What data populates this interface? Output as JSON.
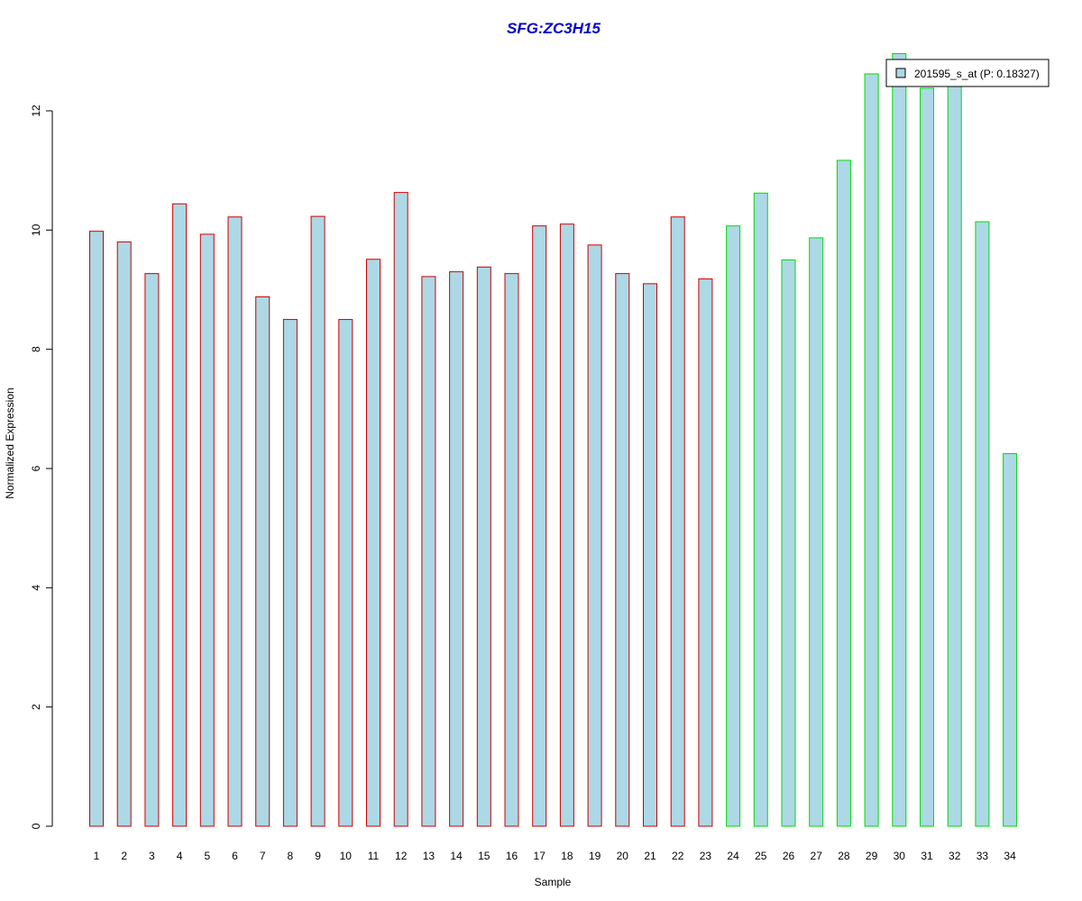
{
  "chart_data": {
    "type": "bar",
    "title": "SFG:ZC3H15",
    "xlabel": "Sample",
    "ylabel": "Normalized Expression",
    "ylim": [
      0,
      13
    ],
    "yticks": [
      0,
      2,
      4,
      6,
      8,
      10,
      12
    ],
    "categories": [
      "1",
      "2",
      "3",
      "4",
      "5",
      "6",
      "7",
      "8",
      "9",
      "10",
      "11",
      "12",
      "13",
      "14",
      "15",
      "16",
      "17",
      "18",
      "19",
      "20",
      "21",
      "22",
      "23",
      "24",
      "25",
      "26",
      "27",
      "28",
      "29",
      "30",
      "31",
      "32",
      "33",
      "34"
    ],
    "series": [
      {
        "name": "201595_s_at (P: 0.18327)",
        "values": [
          9.98,
          9.8,
          9.27,
          10.44,
          9.93,
          10.22,
          8.88,
          8.5,
          10.23,
          8.5,
          9.51,
          10.63,
          9.22,
          9.3,
          9.38,
          9.27,
          10.07,
          10.1,
          9.75,
          9.27,
          9.1,
          10.22,
          9.18,
          10.07,
          10.62,
          9.5,
          9.87,
          11.17,
          12.62,
          12.96,
          12.38,
          12.5,
          10.14,
          6.25
        ],
        "group": [
          "red",
          "red",
          "red",
          "red",
          "red",
          "red",
          "red",
          "red",
          "red",
          "red",
          "red",
          "red",
          "red",
          "red",
          "red",
          "red",
          "red",
          "red",
          "red",
          "red",
          "red",
          "red",
          "red",
          "green",
          "green",
          "green",
          "green",
          "green",
          "green",
          "green",
          "green",
          "green",
          "green",
          "green"
        ]
      }
    ],
    "legend": {
      "position": "top-right",
      "label": "201595_s_at (P: 0.18327)"
    },
    "grid": false
  },
  "colors": {
    "title": "#0000cc",
    "bar_fill": "#add8e6",
    "border_red": "#cc0000",
    "border_green": "#00dd00",
    "axis": "#000000"
  }
}
